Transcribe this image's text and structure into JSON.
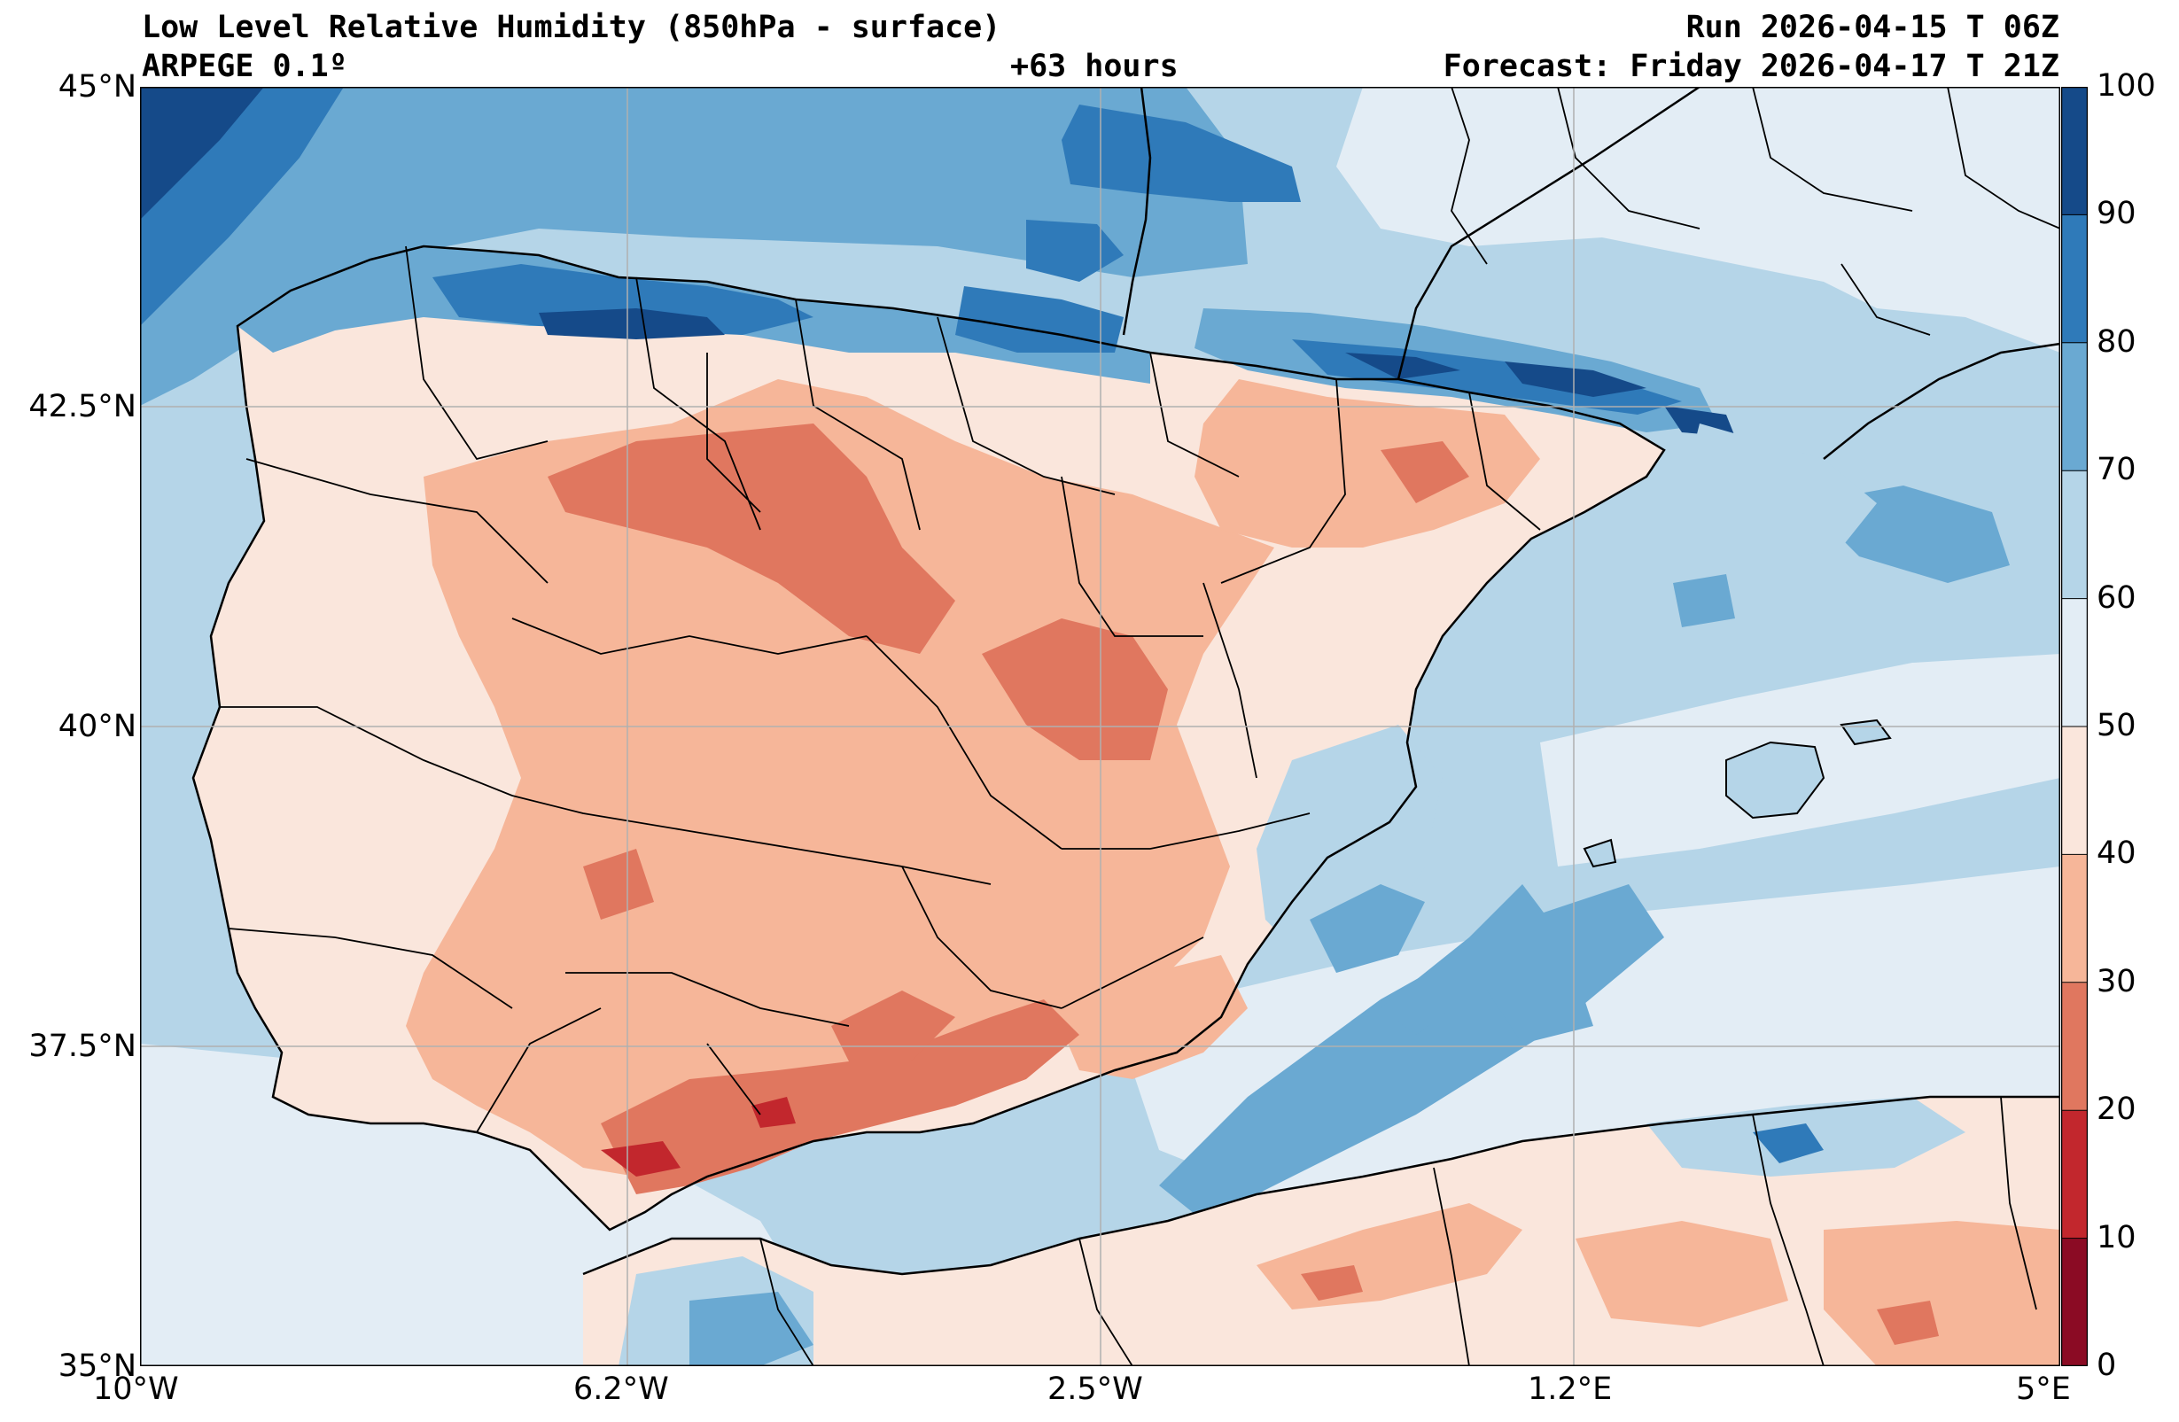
{
  "header": {
    "title": "Low Level Relative Humidity (850hPa - surface)",
    "model": "ARPEGE 0.1º",
    "lead_time": "+63 hours",
    "run": "Run 2026-04-15 T 06Z",
    "forecast": "Forecast: Friday 2026-04-17 T 21Z"
  },
  "axes": {
    "lat_labels": [
      "45°N",
      "42.5°N",
      "40°N",
      "37.5°N",
      "35°N"
    ],
    "lon_labels": [
      "10°W",
      "6.2°W",
      "2.5°W",
      "1.2°E",
      "5°E"
    ]
  },
  "colorbar": {
    "levels": [
      "0",
      "10",
      "20",
      "30",
      "40",
      "50",
      "60",
      "70",
      "80",
      "90",
      "100"
    ],
    "colors": [
      "#8b0b24",
      "#c2272d",
      "#e0775f",
      "#f6b699",
      "#fae6dc",
      "#e3edf5",
      "#b5d5e8",
      "#6aa9d2",
      "#2f7ab9",
      "#154a89"
    ]
  },
  "map": {
    "ocean_color": "#b5d5e8",
    "land_color": "#f6b699",
    "border_color": "#000000",
    "grid_color": "#b0b0b0"
  }
}
